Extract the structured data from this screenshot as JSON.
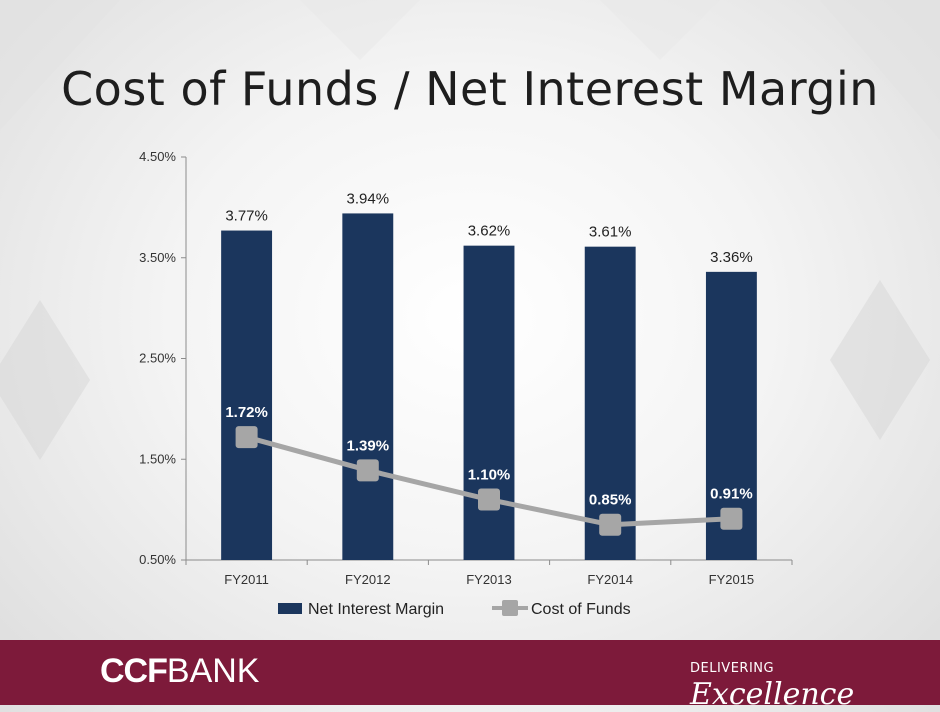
{
  "slide": {
    "title": "Cost of Funds / Net Interest Margin"
  },
  "chart_data": {
    "type": "bar",
    "categories": [
      "FY2011",
      "FY2012",
      "FY2013",
      "FY2014",
      "FY2015"
    ],
    "series": [
      {
        "name": "Net Interest Margin",
        "kind": "bar",
        "color": "#1b365d",
        "values": [
          3.77,
          3.94,
          3.62,
          3.61,
          3.36
        ],
        "labels": [
          "3.77%",
          "3.94%",
          "3.62%",
          "3.61%",
          "3.36%"
        ]
      },
      {
        "name": "Cost of Funds",
        "kind": "line",
        "color": "#a6a6a6",
        "values": [
          1.72,
          1.39,
          1.1,
          0.85,
          0.91
        ],
        "labels": [
          "1.72%",
          "1.39%",
          "1.10%",
          "0.85%",
          "0.91%"
        ]
      }
    ],
    "ylim": [
      0.5,
      4.5
    ],
    "yticks": [
      0.5,
      1.5,
      2.5,
      3.5,
      4.5
    ],
    "ytick_labels": [
      "0.50%",
      "1.50%",
      "2.50%",
      "3.50%",
      "4.50%"
    ],
    "grid": false,
    "legend_position": "bottom"
  },
  "footer": {
    "logo_bold": "CCF",
    "logo_rest": "BANK",
    "tagline_small": "DELIVERING",
    "tagline_script": "Excellence",
    "background_color": "#7d1a3a"
  }
}
